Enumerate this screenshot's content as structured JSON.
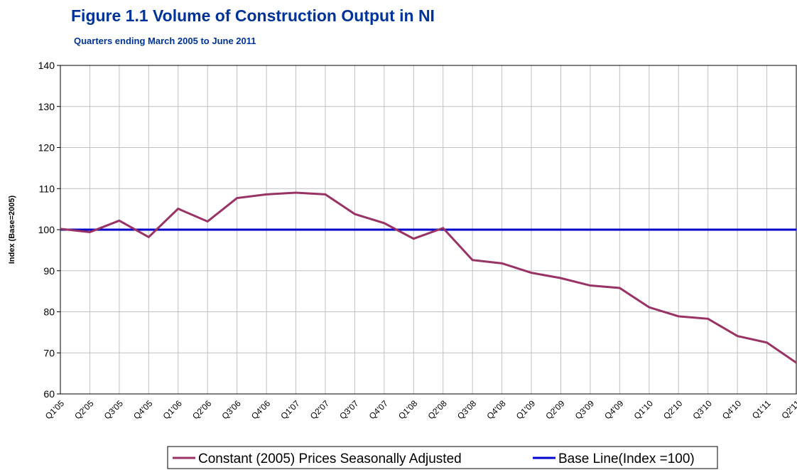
{
  "chart_data": {
    "type": "line",
    "title": "Figure 1.1 Volume of Construction Output in NI",
    "subtitle": "Quarters ending March 2005 to June 2011",
    "y_label": "Index (Base=2005)",
    "categories": [
      "Q1'05",
      "Q2'05",
      "Q3'05",
      "Q4'05",
      "Q1'06",
      "Q2'06",
      "Q3'06",
      "Q4'06",
      "Q1'07",
      "Q2'07",
      "Q3'07",
      "Q4'07",
      "Q1'08",
      "Q2'08",
      "Q3'08",
      "Q4'08",
      "Q1'09",
      "Q2'09",
      "Q3'09",
      "Q4'09",
      "Q1'10",
      "Q2'10",
      "Q3'10",
      "Q4'10",
      "Q1'11",
      "Q2'11"
    ],
    "series": [
      {
        "name": "Constant (2005) Prices Seasonally Adjusted",
        "color": "#993366",
        "values": [
          100.2,
          99.4,
          102.2,
          98.2,
          105.1,
          102.0,
          107.7,
          108.6,
          109.0,
          108.6,
          103.8,
          101.6,
          97.8,
          100.4,
          92.6,
          91.8,
          89.5,
          88.2,
          86.4,
          85.8,
          81.1,
          78.9,
          78.3,
          74.1,
          72.5,
          67.6
        ]
      },
      {
        "name": "Base Line(Index =100)",
        "color": "#0000cc",
        "values": [
          100,
          100,
          100,
          100,
          100,
          100,
          100,
          100,
          100,
          100,
          100,
          100,
          100,
          100,
          100,
          100,
          100,
          100,
          100,
          100,
          100,
          100,
          100,
          100,
          100,
          100
        ]
      }
    ],
    "ylim": [
      60,
      140
    ],
    "yticks": [
      60,
      70,
      80,
      90,
      100,
      110,
      120,
      130,
      140
    ],
    "grid": true
  }
}
